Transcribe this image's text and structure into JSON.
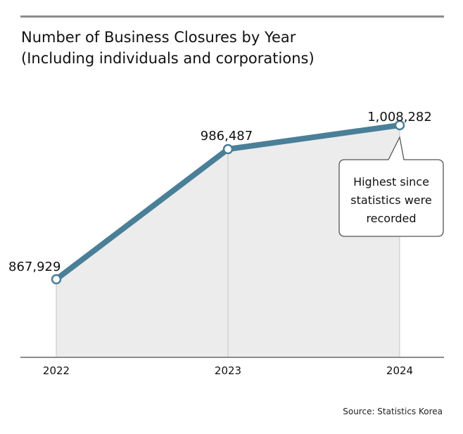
{
  "title_line1": "Number of Business Closures by Year",
  "title_line2": "(Including individuals and corporations)",
  "source": "Source: Statistics Korea",
  "callout": {
    "lines": [
      "Highest since",
      "statistics were",
      "recorded"
    ]
  },
  "colors": {
    "line": "#4a7f98",
    "area": "#ececec",
    "marker_fill": "#ffffff",
    "axis": "#8c8c8c"
  },
  "chart_data": {
    "type": "area",
    "categories": [
      "2022",
      "2023",
      "2024"
    ],
    "values": [
      867929,
      986487,
      1008282
    ],
    "value_labels": [
      "867,929",
      "986,487",
      "1,008,282"
    ],
    "title": "Number of Business Closures by Year (Including individuals and corporations)",
    "xlabel": "",
    "ylabel": "",
    "grid": false,
    "annotation": {
      "category": "2024",
      "text": "Highest since statistics were recorded"
    }
  }
}
